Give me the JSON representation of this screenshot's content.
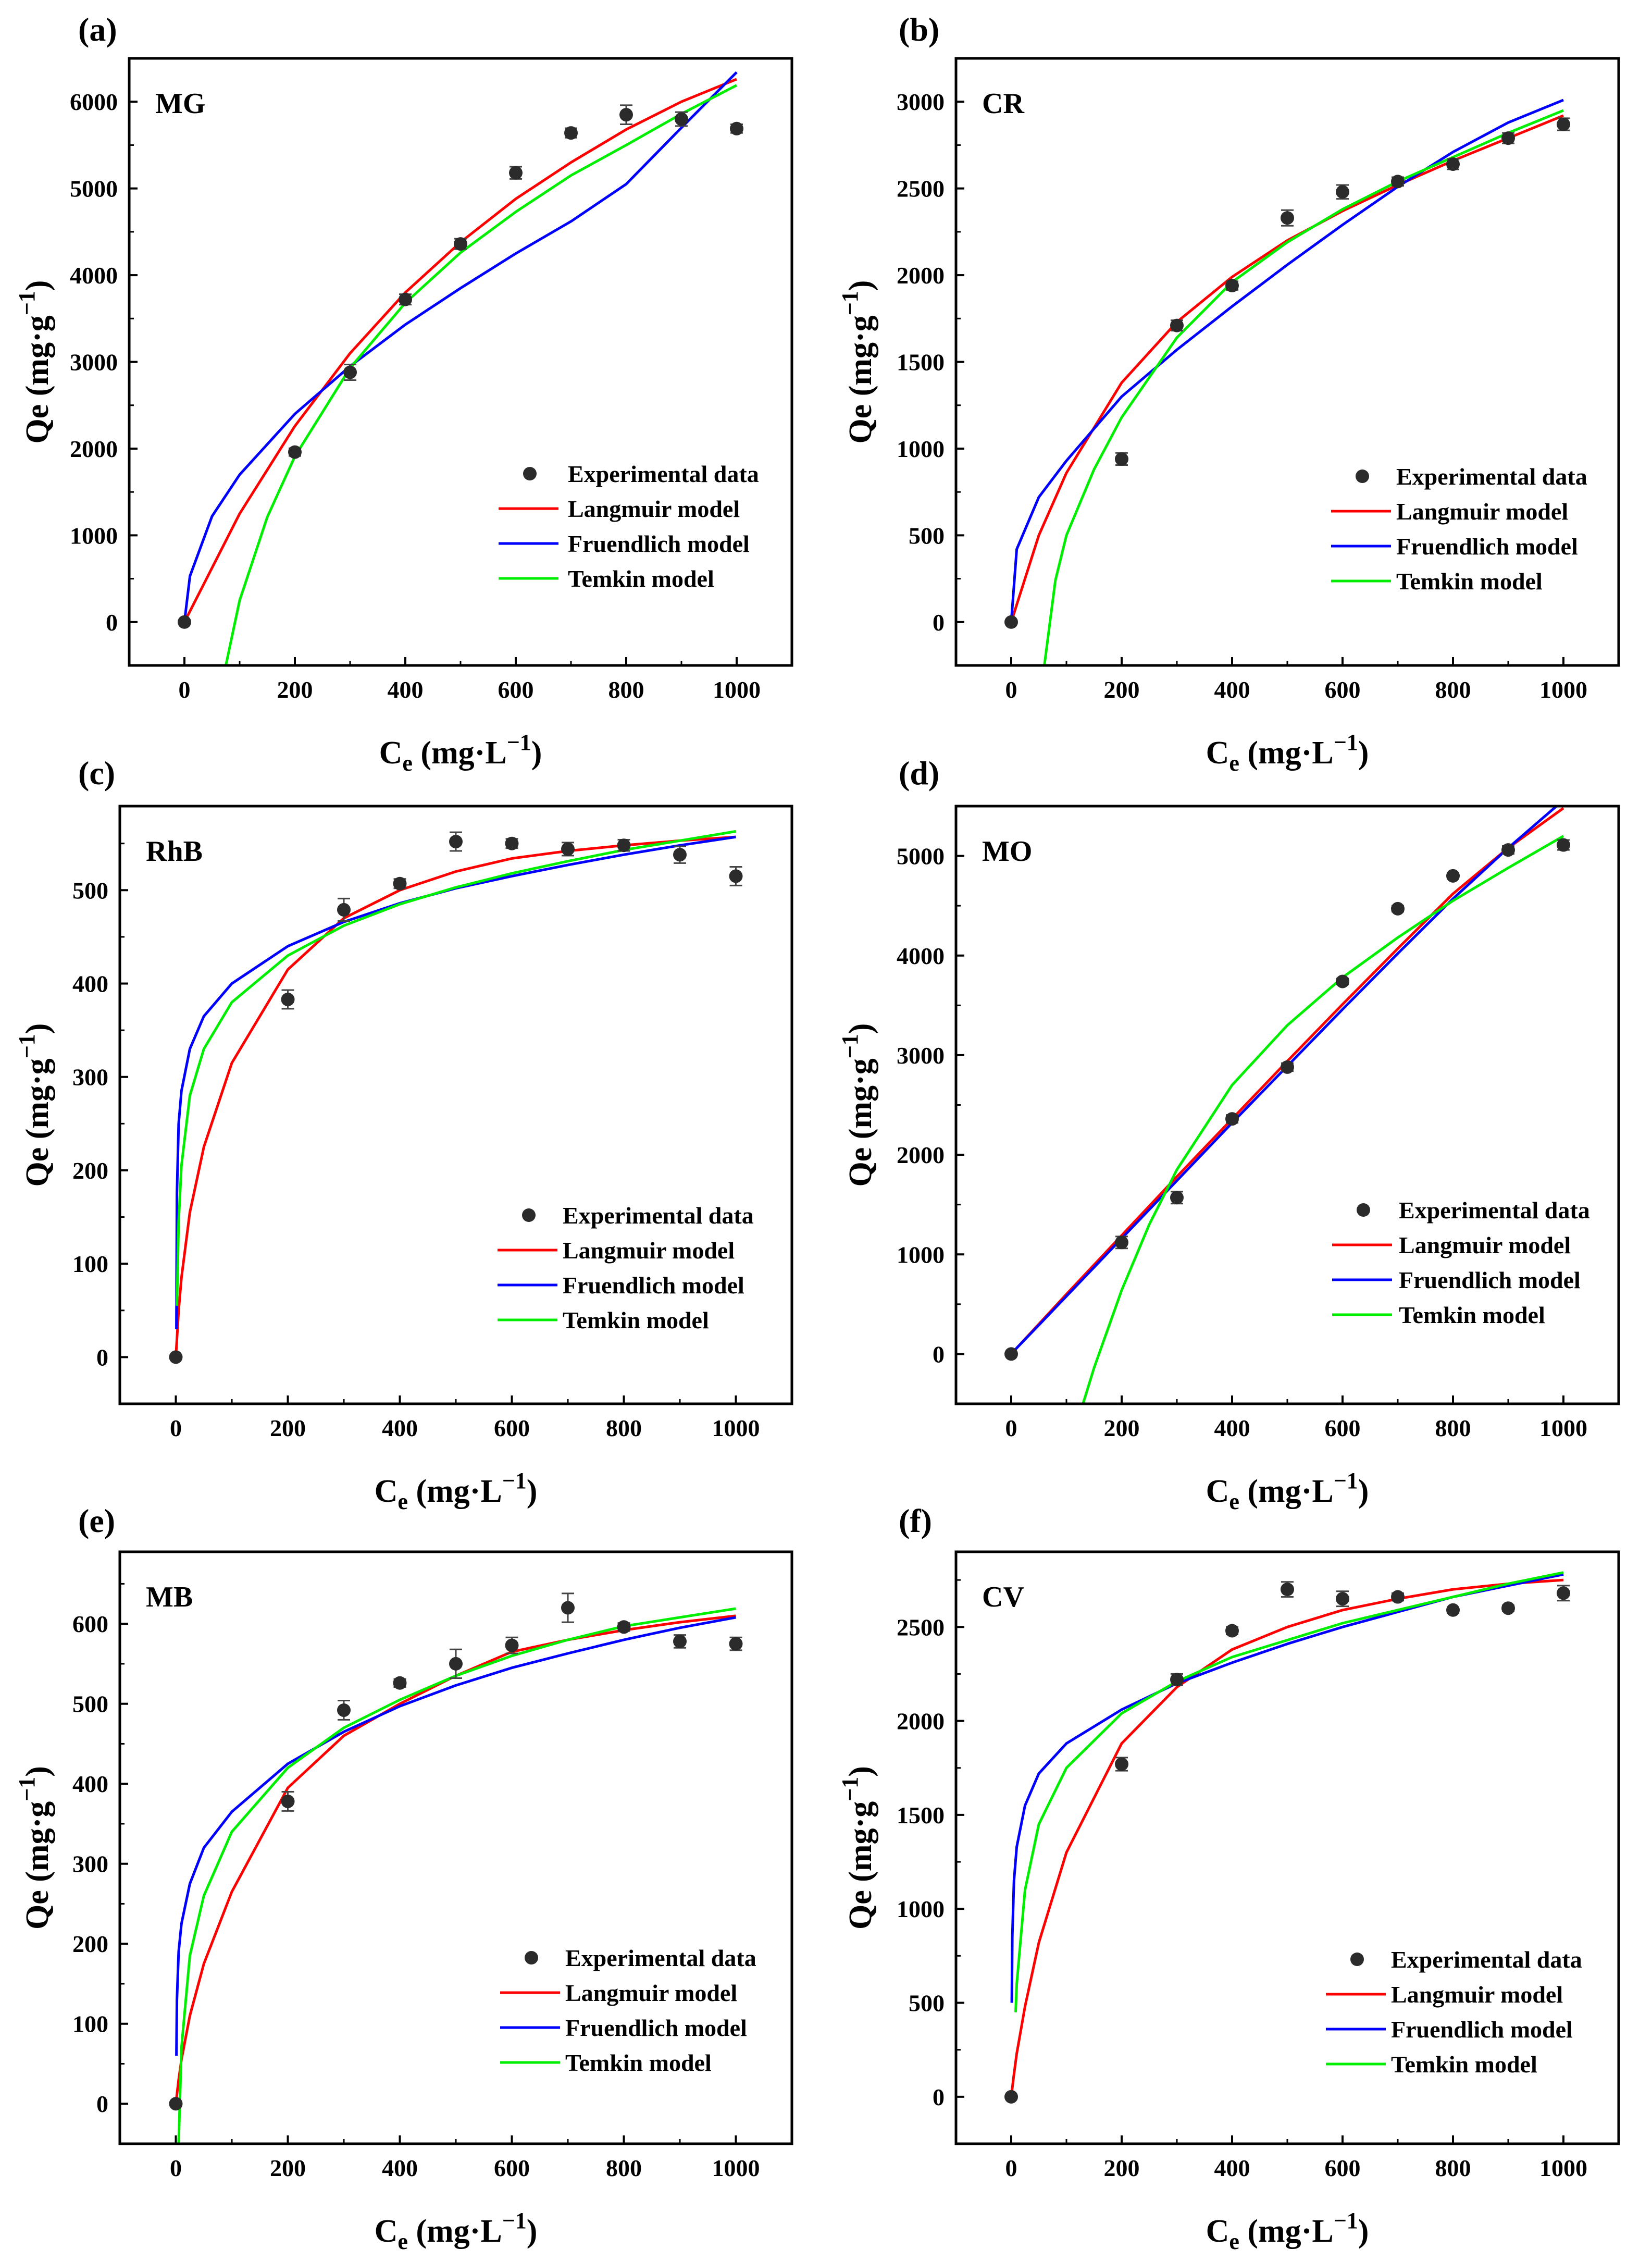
{
  "figure": {
    "charts": [
      {
        "letter": "(a)",
        "label": "MG"
      },
      {
        "letter": "(b)",
        "label": "CR"
      },
      {
        "letter": "(c)",
        "label": "RhB"
      },
      {
        "letter": "(d)",
        "label": "MO"
      },
      {
        "letter": "(e)",
        "label": "MB"
      },
      {
        "letter": "(f)",
        "label": "CV"
      }
    ],
    "xlabel_main": "C",
    "xlabel_sub": "e",
    "xlabel_unit": " (mg·L",
    "xlabel_exp": "−1",
    "xlabel_close": ")",
    "ylabel_main": "Qe (mg·g",
    "ylabel_exp": "−1",
    "ylabel_close": ")",
    "legend": [
      "Experimental data",
      "Langmuir model",
      "Fruendlich model",
      "Temkin model"
    ]
  },
  "colors": {
    "experimental": "#2b2b2b",
    "langmuir": "#ff0000",
    "freundlich": "#0000ff",
    "temkin": "#00ee00"
  },
  "chart_data": [
    {
      "type": "scatter",
      "title": "MG",
      "xlabel": "Ce (mg·L−1)",
      "ylabel": "Qe (mg·g−1)",
      "xlim": [
        -100,
        1100
      ],
      "ylim": [
        -500,
        6500
      ],
      "xticks": [
        0,
        200,
        400,
        600,
        800,
        1000
      ],
      "yticks": [
        0,
        1000,
        2000,
        3000,
        4000,
        5000,
        6000
      ],
      "experimental": {
        "x": [
          0,
          200,
          300,
          400,
          500,
          600,
          700,
          800,
          900,
          1000
        ],
        "y": [
          0,
          1960,
          2880,
          3720,
          4360,
          5180,
          5640,
          5850,
          5800,
          5690
        ],
        "err": [
          0,
          45,
          90,
          60,
          60,
          70,
          55,
          110,
          80,
          50
        ]
      },
      "series": [
        {
          "name": "Langmuir model",
          "x": [
            0,
            100,
            200,
            300,
            400,
            500,
            600,
            700,
            800,
            900,
            1000
          ],
          "y": [
            0,
            1250,
            2260,
            3100,
            3800,
            4380,
            4880,
            5300,
            5680,
            6000,
            6260
          ]
        },
        {
          "name": "Fruendlich model",
          "x": [
            0,
            10,
            50,
            100,
            200,
            300,
            400,
            500,
            600,
            700,
            800,
            900,
            1000
          ],
          "y": [
            0,
            530,
            1220,
            1700,
            2400,
            2950,
            3430,
            3850,
            4250,
            4620,
            5050,
            5700,
            6340
          ]
        },
        {
          "name": "Temkin model",
          "x": [
            75,
            100,
            150,
            200,
            300,
            400,
            500,
            600,
            700,
            800,
            900,
            1000
          ],
          "y": [
            -500,
            250,
            1210,
            1910,
            2930,
            3680,
            4260,
            4730,
            5150,
            5500,
            5860,
            6190
          ]
        }
      ]
    },
    {
      "type": "scatter",
      "title": "CR",
      "xlabel": "Ce (mg·L−1)",
      "ylabel": "Qe (mg·g−1)",
      "xlim": [
        -100,
        1100
      ],
      "ylim": [
        -250,
        3250
      ],
      "xticks": [
        0,
        200,
        400,
        600,
        800,
        1000
      ],
      "yticks": [
        0,
        500,
        1000,
        1500,
        2000,
        2500,
        3000
      ],
      "experimental": {
        "x": [
          0,
          200,
          300,
          400,
          500,
          600,
          700,
          800,
          900,
          1000
        ],
        "y": [
          0,
          940,
          1710,
          1940,
          2330,
          2480,
          2540,
          2640,
          2790,
          2870
        ],
        "err": [
          0,
          35,
          30,
          25,
          45,
          40,
          25,
          30,
          30,
          35
        ]
      },
      "series": [
        {
          "name": "Langmuir model",
          "x": [
            0,
            50,
            100,
            200,
            300,
            400,
            500,
            600,
            700,
            800,
            900,
            1000
          ],
          "y": [
            0,
            500,
            860,
            1380,
            1730,
            1990,
            2200,
            2370,
            2520,
            2660,
            2790,
            2920
          ]
        },
        {
          "name": "Fruendlich model",
          "x": [
            0,
            10,
            50,
            100,
            200,
            300,
            400,
            500,
            600,
            700,
            800,
            900,
            1000
          ],
          "y": [
            0,
            420,
            720,
            930,
            1300,
            1570,
            1820,
            2060,
            2290,
            2510,
            2710,
            2880,
            3010
          ]
        },
        {
          "name": "Temkin model",
          "x": [
            60,
            80,
            100,
            150,
            200,
            300,
            400,
            500,
            600,
            700,
            800,
            900,
            1000
          ],
          "y": [
            -250,
            240,
            500,
            880,
            1180,
            1640,
            1960,
            2190,
            2380,
            2540,
            2680,
            2820,
            2950
          ]
        }
      ]
    },
    {
      "type": "scatter",
      "title": "RhB",
      "xlabel": "Ce (mg·L−1)",
      "ylabel": "Qe (mg·g−1)",
      "xlim": [
        -100,
        1100
      ],
      "ylim": [
        -50,
        590
      ],
      "xticks": [
        0,
        200,
        400,
        600,
        800,
        1000
      ],
      "yticks": [
        0,
        100,
        200,
        300,
        400,
        500
      ],
      "experimental": {
        "x": [
          0,
          200,
          300,
          400,
          500,
          600,
          700,
          800,
          900,
          1000
        ],
        "y": [
          0,
          383,
          479,
          507,
          552,
          550,
          544,
          548,
          538,
          515
        ],
        "err": [
          0,
          10,
          12,
          5,
          10,
          5,
          7,
          6,
          9,
          10
        ]
      },
      "series": [
        {
          "name": "Langmuir model",
          "x": [
            0,
            5,
            10,
            25,
            50,
            100,
            200,
            300,
            400,
            500,
            600,
            700,
            800,
            900,
            1000
          ],
          "y": [
            0,
            50,
            85,
            155,
            225,
            315,
            415,
            470,
            500,
            520,
            534,
            542,
            548,
            553,
            557
          ]
        },
        {
          "name": "Fruendlich model",
          "x": [
            1,
            2,
            5,
            10,
            25,
            50,
            100,
            200,
            300,
            400,
            500,
            600,
            700,
            800,
            900,
            1000
          ],
          "y": [
            30,
            175,
            250,
            285,
            330,
            365,
            400,
            440,
            466,
            486,
            502,
            515,
            527,
            538,
            548,
            557
          ]
        },
        {
          "name": "Temkin model",
          "x": [
            2,
            5,
            10,
            25,
            50,
            100,
            200,
            300,
            400,
            500,
            600,
            700,
            800,
            900,
            1000
          ],
          "y": [
            55,
            145,
            205,
            280,
            330,
            380,
            430,
            462,
            485,
            503,
            518,
            531,
            543,
            553,
            563
          ]
        }
      ]
    },
    {
      "type": "scatter",
      "title": "MO",
      "xlabel": "Ce (mg·L−1)",
      "ylabel": "Qe (mg·g−1)",
      "xlim": [
        -100,
        1100
      ],
      "ylim": [
        -500,
        5500
      ],
      "xticks": [
        0,
        200,
        400,
        600,
        800,
        1000
      ],
      "yticks": [
        0,
        1000,
        2000,
        3000,
        4000,
        5000
      ],
      "experimental": {
        "x": [
          0,
          200,
          300,
          400,
          500,
          600,
          700,
          800,
          900,
          1000
        ],
        "y": [
          0,
          1120,
          1570,
          2360,
          2880,
          3740,
          4470,
          4800,
          5060,
          5110
        ],
        "err": [
          0,
          60,
          60,
          40,
          40,
          30,
          30,
          30,
          40,
          50
        ]
      },
      "series": [
        {
          "name": "Langmuir model",
          "x": [
            0,
            100,
            200,
            300,
            400,
            500,
            600,
            700,
            800,
            900,
            1000
          ],
          "y": [
            0,
            600,
            1190,
            1780,
            2360,
            2940,
            3510,
            4070,
            4620,
            5080,
            5480
          ]
        },
        {
          "name": "Fruendlich model",
          "x": [
            0,
            10,
            50,
            100,
            200,
            300,
            400,
            500,
            600,
            700,
            800,
            900,
            1000
          ],
          "y": [
            0,
            60,
            290,
            580,
            1160,
            1740,
            2320,
            2890,
            3460,
            4020,
            4570,
            5080,
            5560
          ]
        },
        {
          "name": "Temkin model",
          "x": [
            130,
            150,
            200,
            250,
            300,
            400,
            500,
            600,
            700,
            800,
            900,
            1000
          ],
          "y": [
            -500,
            -140,
            640,
            1300,
            1850,
            2700,
            3300,
            3780,
            4180,
            4550,
            4880,
            5200
          ]
        }
      ]
    },
    {
      "type": "scatter",
      "title": "MB",
      "xlabel": "Ce (mg·L−1)",
      "ylabel": "Qe (mg·g−1)",
      "xlim": [
        -100,
        1100
      ],
      "ylim": [
        -50,
        690
      ],
      "xticks": [
        0,
        200,
        400,
        600,
        800,
        1000
      ],
      "yticks": [
        0,
        100,
        200,
        300,
        400,
        500,
        600
      ],
      "experimental": {
        "x": [
          0,
          200,
          300,
          400,
          500,
          600,
          700,
          800,
          900,
          1000
        ],
        "y": [
          0,
          378,
          492,
          526,
          550,
          573,
          620,
          596,
          578,
          575
        ],
        "err": [
          0,
          12,
          12,
          5,
          18,
          10,
          18,
          5,
          8,
          8
        ]
      },
      "series": [
        {
          "name": "Langmuir model",
          "x": [
            0,
            5,
            10,
            25,
            50,
            100,
            200,
            300,
            400,
            500,
            600,
            700,
            800,
            900,
            1000
          ],
          "y": [
            0,
            30,
            55,
            110,
            175,
            265,
            395,
            460,
            500,
            535,
            565,
            580,
            592,
            602,
            610
          ]
        },
        {
          "name": "Fruendlich model",
          "x": [
            1,
            2,
            5,
            10,
            25,
            50,
            100,
            200,
            300,
            400,
            500,
            600,
            700,
            800,
            900,
            1000
          ],
          "y": [
            60,
            130,
            190,
            225,
            275,
            320,
            365,
            425,
            465,
            497,
            523,
            545,
            563,
            580,
            595,
            608
          ]
        },
        {
          "name": "Temkin model",
          "x": [
            5,
            10,
            25,
            50,
            100,
            200,
            300,
            400,
            500,
            600,
            700,
            800,
            900,
            1000
          ],
          "y": [
            -50,
            70,
            185,
            260,
            340,
            420,
            470,
            505,
            535,
            560,
            580,
            597,
            608,
            619
          ]
        }
      ]
    },
    {
      "type": "scatter",
      "title": "CV",
      "xlabel": "Ce (mg·L−1)",
      "ylabel": "Qe (mg·g−1)",
      "xlim": [
        -100,
        1100
      ],
      "ylim": [
        -250,
        2900
      ],
      "xticks": [
        0,
        200,
        400,
        600,
        800,
        1000
      ],
      "yticks": [
        0,
        500,
        1000,
        1500,
        2000,
        2500
      ],
      "experimental": {
        "x": [
          0,
          200,
          300,
          400,
          500,
          600,
          700,
          800,
          900,
          1000
        ],
        "y": [
          0,
          1770,
          2220,
          2480,
          2700,
          2650,
          2660,
          2590,
          2600,
          2680
        ],
        "err": [
          0,
          35,
          30,
          20,
          40,
          40,
          20,
          15,
          15,
          40
        ]
      },
      "series": [
        {
          "name": "Langmuir model",
          "x": [
            0,
            5,
            10,
            25,
            50,
            100,
            200,
            300,
            400,
            500,
            600,
            700,
            800,
            900,
            1000
          ],
          "y": [
            0,
            120,
            230,
            480,
            820,
            1300,
            1880,
            2180,
            2380,
            2500,
            2590,
            2650,
            2700,
            2730,
            2750
          ]
        },
        {
          "name": "Fruendlich model",
          "x": [
            1,
            2,
            5,
            10,
            25,
            50,
            100,
            200,
            300,
            400,
            500,
            600,
            700,
            800,
            900,
            1000
          ],
          "y": [
            500,
            850,
            1150,
            1330,
            1550,
            1720,
            1880,
            2060,
            2200,
            2310,
            2410,
            2500,
            2580,
            2660,
            2720,
            2780
          ]
        },
        {
          "name": "Temkin model",
          "x": [
            8,
            10,
            25,
            50,
            100,
            200,
            300,
            400,
            500,
            600,
            700,
            800,
            900,
            1000
          ],
          "y": [
            450,
            600,
            1100,
            1450,
            1750,
            2040,
            2210,
            2340,
            2430,
            2520,
            2590,
            2660,
            2730,
            2790
          ]
        }
      ]
    }
  ]
}
